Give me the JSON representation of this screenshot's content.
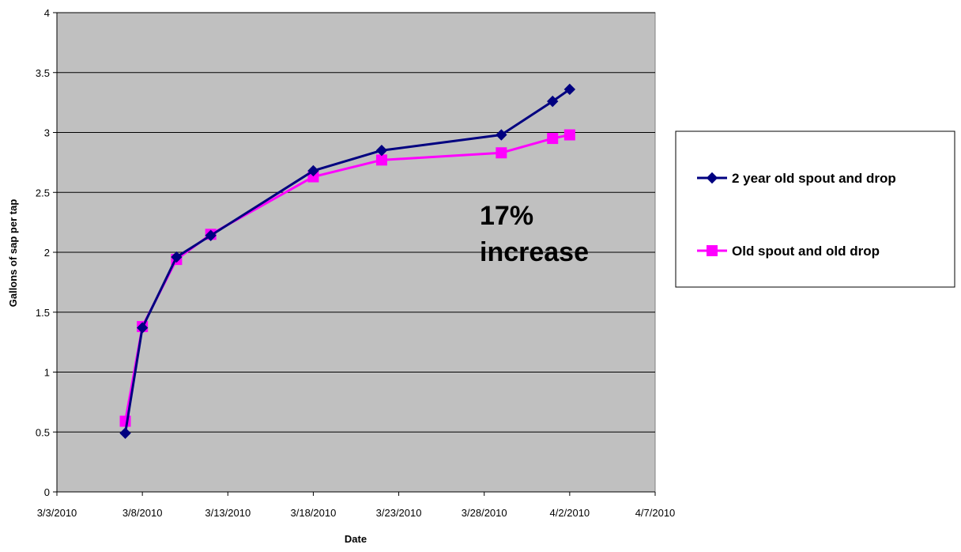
{
  "chart_data": {
    "type": "line",
    "title": "",
    "xlabel": "Date",
    "ylabel": "Gallons of sap per tap",
    "x_is_date": true,
    "xlim": [
      "2010-03-03",
      "2010-04-07"
    ],
    "ylim": [
      0,
      4
    ],
    "x_ticks": [
      "2010-03-03",
      "2010-03-08",
      "2010-03-13",
      "2010-03-18",
      "2010-03-23",
      "2010-03-28",
      "2010-04-02",
      "2010-04-07"
    ],
    "x_tick_labels": [
      "3/3/2010",
      "3/8/2010",
      "3/13/2010",
      "3/18/2010",
      "3/23/2010",
      "3/28/2010",
      "4/2/2010",
      "4/7/2010"
    ],
    "y_ticks": [
      0,
      0.5,
      1,
      1.5,
      2,
      2.5,
      3,
      3.5,
      4
    ],
    "y_tick_labels": [
      "0",
      "0.5",
      "1",
      "1.5",
      "2",
      "2.5",
      "3",
      "3.5",
      "4"
    ],
    "grid": "horizontal",
    "plot_background": "#c0c0c0",
    "legend_position": "right",
    "annotation": [
      "17%",
      "increase"
    ],
    "series": [
      {
        "name": "2 year old spout and drop",
        "color": "#000080",
        "marker": "diamond",
        "x": [
          "2010-03-07",
          "2010-03-08",
          "2010-03-10",
          "2010-03-12",
          "2010-03-18",
          "2010-03-22",
          "2010-03-29",
          "2010-04-01",
          "2010-04-02"
        ],
        "values": [
          0.49,
          1.37,
          1.96,
          2.14,
          2.68,
          2.85,
          2.98,
          3.26,
          3.36
        ]
      },
      {
        "name": "Old spout and old drop",
        "color": "#ff00ff",
        "marker": "square",
        "x": [
          "2010-03-07",
          "2010-03-08",
          "2010-03-10",
          "2010-03-12",
          "2010-03-18",
          "2010-03-22",
          "2010-03-29",
          "2010-04-01",
          "2010-04-02"
        ],
        "values": [
          0.59,
          1.38,
          1.94,
          2.15,
          2.63,
          2.77,
          2.83,
          2.95,
          2.98
        ]
      }
    ]
  }
}
